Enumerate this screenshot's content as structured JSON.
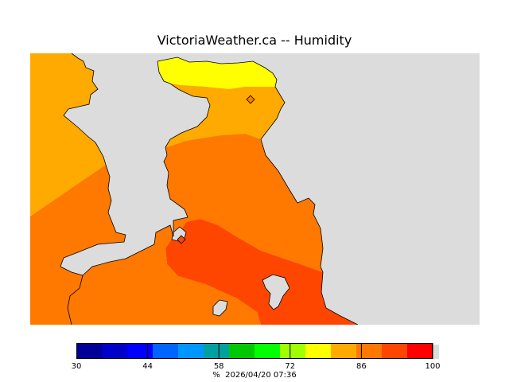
{
  "header": {
    "title": "VictoriaWeather.ca -- Humidity"
  },
  "colors": {
    "land": "#dcdcdc",
    "band_80_86": "#ffaa00",
    "band_86_93": "#ff7800",
    "band_93_100": "#ff4600",
    "band_76_80": "#ffff00"
  },
  "colorbar": {
    "min": 30,
    "max": 100,
    "colors": [
      "#000098",
      "#0000c8",
      "#0000ff",
      "#0064ff",
      "#0096ff",
      "#00a0a0",
      "#00c800",
      "#00ff00",
      "#a0ff00",
      "#ffff00",
      "#ffaa00",
      "#ff7800",
      "#ff4600",
      "#ff0000"
    ],
    "tick_labels": [
      {
        "value": 30,
        "text": "30"
      },
      {
        "value": 44,
        "text": "44"
      },
      {
        "value": 58,
        "text": "58"
      },
      {
        "value": 72,
        "text": "72"
      },
      {
        "value": 86,
        "text": "86"
      },
      {
        "value": 100,
        "text": "100"
      }
    ]
  },
  "caption": {
    "unit": "%",
    "timestamp": "2026/04/20 07:36"
  }
}
